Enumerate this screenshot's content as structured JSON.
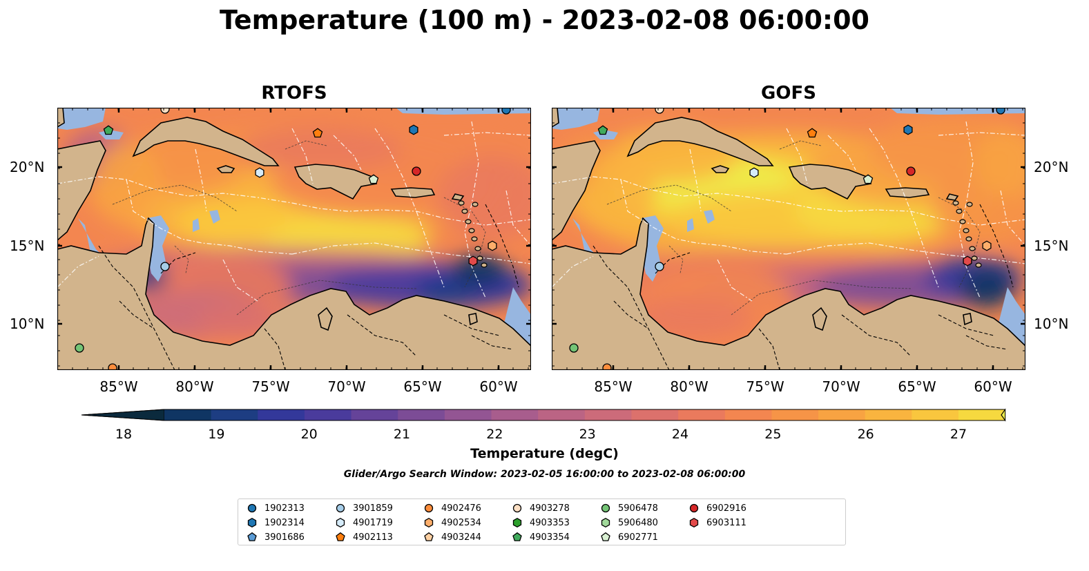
{
  "title": "Temperature (100 m) - 2023-02-08 06:00:00",
  "panels": [
    {
      "title": "RTOFS"
    },
    {
      "title": "GOFS"
    }
  ],
  "x_ticks": [
    "85°W",
    "80°W",
    "75°W",
    "70°W",
    "65°W",
    "60°W"
  ],
  "y_ticks": [
    "20°N",
    "15°N",
    "10°N"
  ],
  "colorbar": {
    "label": "Temperature (degC)",
    "ticks": [
      "18",
      "19",
      "20",
      "21",
      "22",
      "23",
      "24",
      "25",
      "26",
      "27"
    ],
    "colors": [
      "#0b2a3d",
      "#0f3563",
      "#1d3d82",
      "#33389a",
      "#4a3b9c",
      "#654399",
      "#7c4c96",
      "#935593",
      "#a85d8d",
      "#bb6484",
      "#cc6b7a",
      "#dc716c",
      "#ea7a5d",
      "#f38650",
      "#f69447",
      "#f8a342",
      "#f9b43f",
      "#f9c63e",
      "#f6d93f",
      "#eeed4b"
    ]
  },
  "search_window": "Glider/Argo Search Window: 2023-02-05 16:00:00 to 2023-02-08 06:00:00",
  "legend": [
    {
      "label": "1902313",
      "marker": "circle",
      "color": "#1f77b4"
    },
    {
      "label": "1902314",
      "marker": "hexagon",
      "color": "#1f77b4"
    },
    {
      "label": "3901686",
      "marker": "pentagon",
      "color": "#5a9bd5"
    },
    {
      "label": "3901859",
      "marker": "circle",
      "color": "#a6cde8"
    },
    {
      "label": "4901719",
      "marker": "hexagon",
      "color": "#d6ecfa"
    },
    {
      "label": "4902113",
      "marker": "pentagon",
      "color": "#ff7f0e"
    },
    {
      "label": "4902476",
      "marker": "circle",
      "color": "#fd8d3c"
    },
    {
      "label": "4902534",
      "marker": "hexagon",
      "color": "#fdae6b"
    },
    {
      "label": "4903244",
      "marker": "pentagon",
      "color": "#fdd0a2"
    },
    {
      "label": "4903278",
      "marker": "circle",
      "color": "#fde0c5"
    },
    {
      "label": "4903353",
      "marker": "hexagon",
      "color": "#2ca02c"
    },
    {
      "label": "4903354",
      "marker": "pentagon",
      "color": "#41ab5d"
    },
    {
      "label": "5906478",
      "marker": "circle",
      "color": "#74c476"
    },
    {
      "label": "5906480",
      "marker": "hexagon",
      "color": "#a1d99b"
    },
    {
      "label": "6902771",
      "marker": "pentagon",
      "color": "#d9f0d3"
    },
    {
      "label": "6902916",
      "marker": "circle",
      "color": "#d62728"
    },
    {
      "label": "6903111",
      "marker": "hexagon",
      "color": "#e34a4a"
    }
  ],
  "colors": {
    "land": "#d2b48c",
    "shallow_water": "#97b6e0",
    "outside_domain": "#0b2a3d",
    "eez": "#ffffff",
    "coast": "#000000"
  }
}
